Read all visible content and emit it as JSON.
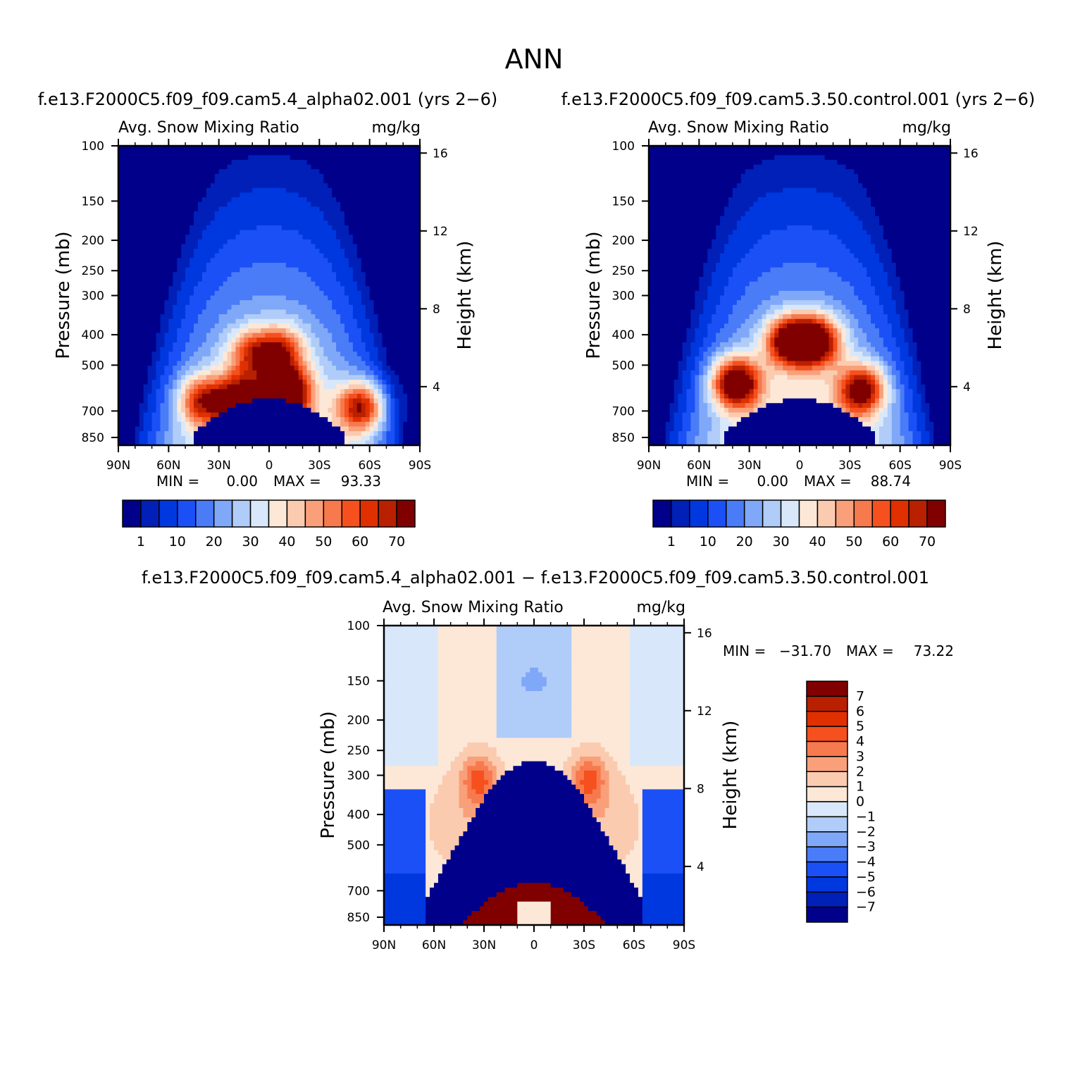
{
  "figure": {
    "title": "ANN",
    "diff_title": "f.e13.F2000C5.f09_f09.cam5.4_alpha02.001  −  f.e13.F2000C5.f09_f09.cam5.3.50.control.001"
  },
  "chart_data": [
    {
      "type": "heatmap",
      "case_title": "f.e13.F2000C5.f09_f09.cam5.4_alpha02.001  (yrs  2−6)",
      "variable": "Avg.  Snow  Mixing  Ratio",
      "units": "mg/kg",
      "ylabel": "Pressure  (mb)",
      "y2label": "Height  (km)",
      "x_ticks": [
        "90N",
        "60N",
        "30N",
        "0",
        "30S",
        "60S",
        "90S"
      ],
      "p_ticks": [
        "100",
        "150",
        "200",
        "250",
        "300",
        "400",
        "500",
        "700",
        "850"
      ],
      "h_ticks": [
        "16",
        "12",
        "8",
        "4"
      ],
      "min_label": "MIN  =",
      "min_value": "0.00",
      "max_label": "MAX  =",
      "max_value": "93.33",
      "colorbar_labels": [
        "1",
        "10",
        "20",
        "30",
        "40",
        "50",
        "60",
        "70"
      ],
      "colors": [
        "#00008b",
        "#0020b8",
        "#0038e0",
        "#1a50f5",
        "#4a7cf8",
        "#80a8f8",
        "#b0ccf8",
        "#d8e8fa",
        "#fde8d8",
        "#fbcbb0",
        "#f9a07a",
        "#f7794e",
        "#f5501e",
        "#e03000",
        "#b82000",
        "#800000"
      ],
      "peaks": [
        {
          "lat": -55,
          "p": 680,
          "value": 75
        },
        {
          "lat": -10,
          "p": 610,
          "value": 93.33
        },
        {
          "lat": -7,
          "p": 450,
          "value": 62
        },
        {
          "lat": 10,
          "p": 460,
          "value": 58
        },
        {
          "lat": 18,
          "p": 640,
          "value": 72
        },
        {
          "lat": 40,
          "p": 650,
          "value": 66
        }
      ]
    },
    {
      "type": "heatmap",
      "case_title": "f.e13.F2000C5.f09_f09.cam5.3.50.control.001  (yrs  2−6)",
      "variable": "Avg.  Snow  Mixing  Ratio",
      "units": "mg/kg",
      "ylabel": "Pressure  (mb)",
      "y2label": "Height  (km)",
      "x_ticks": [
        "90N",
        "60N",
        "30N",
        "0",
        "30S",
        "60S",
        "90S"
      ],
      "p_ticks": [
        "100",
        "150",
        "200",
        "250",
        "300",
        "400",
        "500",
        "700",
        "850"
      ],
      "h_ticks": [
        "16",
        "12",
        "8",
        "4"
      ],
      "min_label": "MIN  =",
      "min_value": "0.00",
      "max_label": "MAX  =",
      "max_value": "88.74",
      "colorbar_labels": [
        "1",
        "10",
        "20",
        "30",
        "40",
        "50",
        "60",
        "70"
      ],
      "colors": [
        "#00008b",
        "#0020b8",
        "#0038e0",
        "#1a50f5",
        "#4a7cf8",
        "#80a8f8",
        "#b0ccf8",
        "#d8e8fa",
        "#fde8d8",
        "#fbcbb0",
        "#f9a07a",
        "#f7794e",
        "#f5501e",
        "#e03000",
        "#b82000",
        "#800000"
      ],
      "peaks": [
        {
          "lat": -37,
          "p": 600,
          "value": 78
        },
        {
          "lat": -10,
          "p": 420,
          "value": 85
        },
        {
          "lat": 6,
          "p": 420,
          "value": 82
        },
        {
          "lat": 38,
          "p": 570,
          "value": 88.74
        }
      ]
    },
    {
      "type": "heatmap",
      "variable": "Avg.  Snow  Mixing  Ratio",
      "units": "mg/kg",
      "ylabel": "Pressure  (mb)",
      "y2label": "Height  (km)",
      "x_ticks": [
        "90N",
        "60N",
        "30N",
        "0",
        "30S",
        "60S",
        "90S"
      ],
      "p_ticks": [
        "100",
        "150",
        "200",
        "250",
        "300",
        "400",
        "500",
        "700",
        "850"
      ],
      "h_ticks": [
        "16",
        "12",
        "8",
        "4"
      ],
      "min_label": "MIN  =",
      "min_value": "−31.70",
      "max_label": "MAX  =",
      "max_value": "73.22",
      "colorbar_labels": [
        "7",
        "6",
        "5",
        "4",
        "3",
        "2",
        "1",
        "0",
        "−1",
        "−2",
        "−3",
        "−4",
        "−5",
        "−6",
        "−7"
      ],
      "colors": [
        "#800000",
        "#b82000",
        "#e03000",
        "#f5501e",
        "#f7794e",
        "#f9a07a",
        "#fbcbb0",
        "#fde8d8",
        "#d8e8fa",
        "#b0ccf8",
        "#80a8f8",
        "#4a7cf8",
        "#1a50f5",
        "#0038e0",
        "#0020b8",
        "#00008b"
      ]
    }
  ]
}
